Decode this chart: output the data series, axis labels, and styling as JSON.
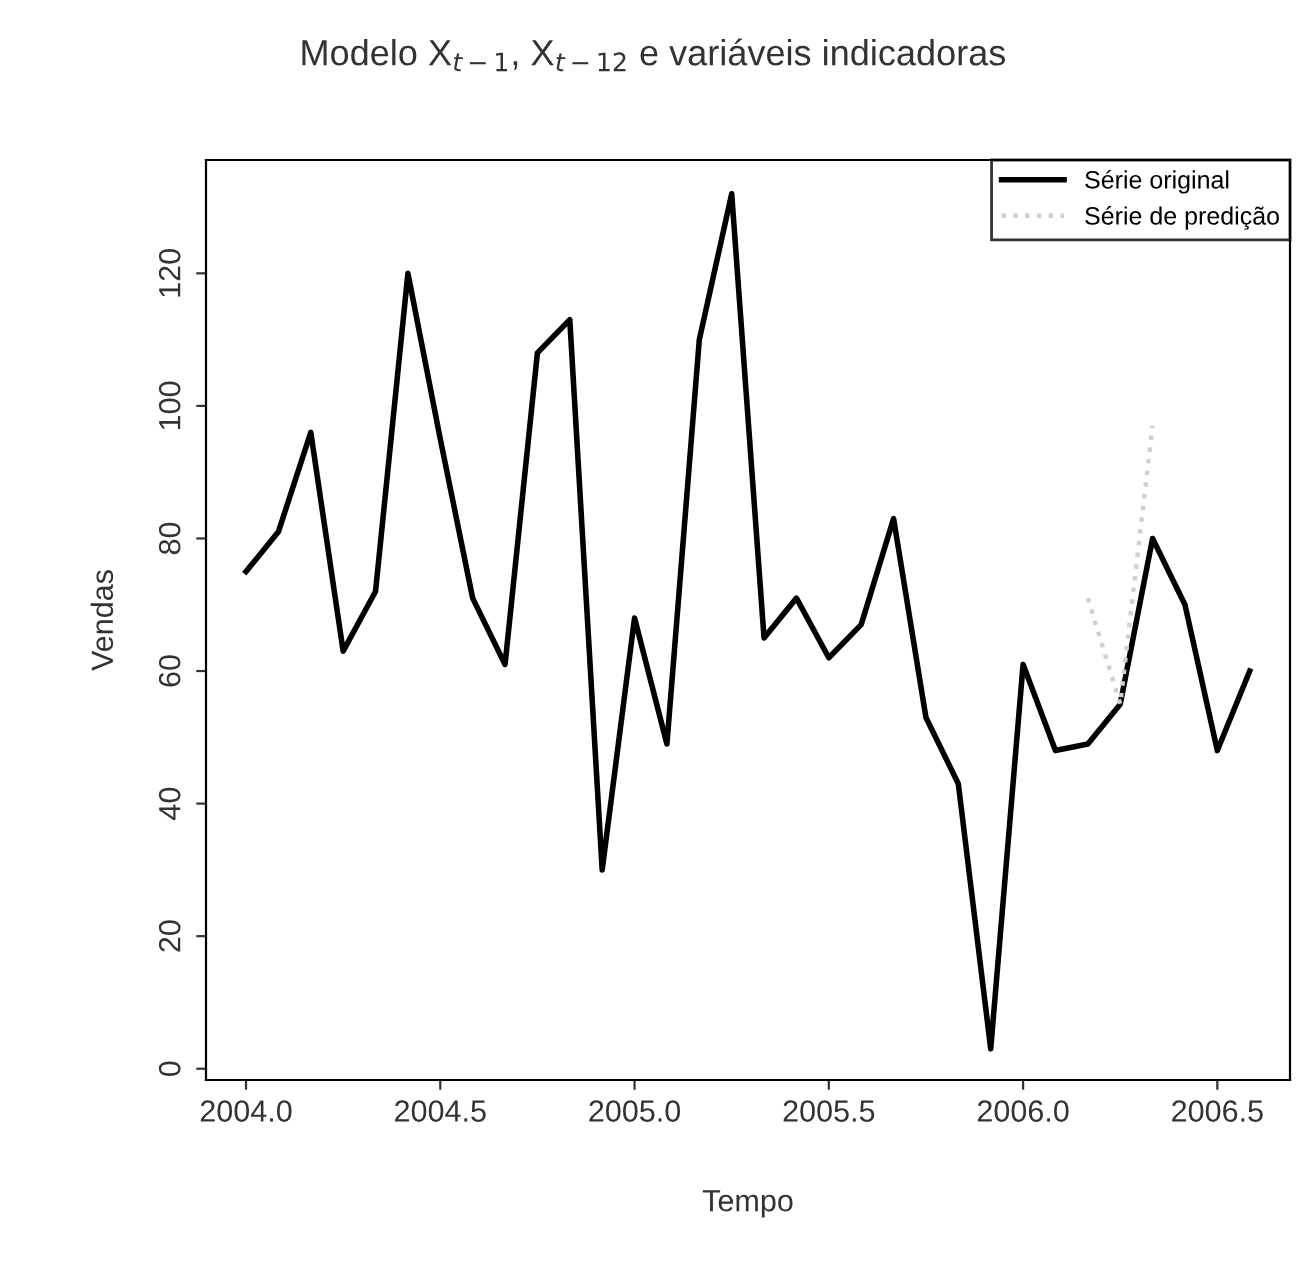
{
  "chart_data": {
    "type": "line",
    "title": "Modelo X$_{t−1}$, X$_{t−12}$ e variáveis indicadoras",
    "xlabel": "Tempo",
    "ylabel": "Vendas",
    "x": [
      2004.0,
      2004.0833,
      2004.1667,
      2004.25,
      2004.3333,
      2004.4167,
      2004.5,
      2004.5833,
      2004.6667,
      2004.75,
      2004.8333,
      2004.9167,
      2005.0,
      2005.0833,
      2005.1667,
      2005.25,
      2005.3333,
      2005.4167,
      2005.5,
      2005.5833,
      2005.6667,
      2005.75,
      2005.8333,
      2005.9167,
      2006.0,
      2006.0833,
      2006.1667,
      2006.25,
      2006.3333,
      2006.4167,
      2006.5,
      2006.5833
    ],
    "series": [
      {
        "name": "Série original",
        "color": "#000000",
        "line_style": "solid",
        "values": [
          75,
          81,
          96,
          63,
          72,
          120,
          95,
          71,
          61,
          108,
          113,
          30,
          68,
          49,
          110,
          132,
          65,
          71,
          62,
          67,
          83,
          53,
          43,
          3,
          61,
          48,
          49,
          55,
          80,
          70,
          48,
          60
        ]
      },
      {
        "name": "Série de predição",
        "color": "#d0d0d0",
        "line_style": "dotted",
        "values": [
          null,
          null,
          null,
          null,
          null,
          null,
          null,
          null,
          null,
          null,
          null,
          null,
          null,
          null,
          null,
          null,
          null,
          null,
          null,
          null,
          null,
          null,
          null,
          null,
          null,
          null,
          71,
          55,
          97,
          null,
          null,
          null
        ]
      }
    ],
    "xlim": [
      2003.897,
      2006.687
    ],
    "ylim": [
      -1.7,
      137.1
    ],
    "xticks": [
      {
        "value": 2004.0,
        "label": "2004.0"
      },
      {
        "value": 2004.5,
        "label": "2004.5"
      },
      {
        "value": 2005.0,
        "label": "2005.0"
      },
      {
        "value": 2005.5,
        "label": "2005.5"
      },
      {
        "value": 2006.0,
        "label": "2006.0"
      },
      {
        "value": 2006.5,
        "label": "2006.5"
      }
    ],
    "yticks": [
      0,
      20,
      40,
      60,
      80,
      100,
      120
    ],
    "legend": "top right",
    "grid": false
  }
}
